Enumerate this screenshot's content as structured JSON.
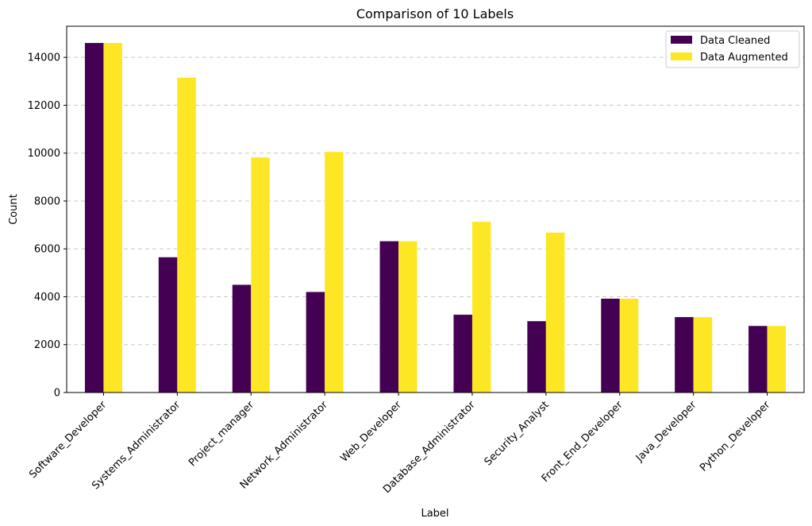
{
  "chart_data": {
    "type": "bar",
    "title": "Comparison of 10 Labels",
    "xlabel": "Label",
    "ylabel": "Count",
    "ylim": [
      0,
      15300
    ],
    "yticks": [
      0,
      2000,
      4000,
      6000,
      8000,
      10000,
      12000,
      14000
    ],
    "grid": "y-dashed",
    "legend_position": "top-right",
    "categories": [
      "Software_Developer",
      "Systems_Administrator",
      "Project_manager",
      "Network_Administrator",
      "Web_Developer",
      "Database_Administrator",
      "Security_Analyst",
      "Front_End_Developer",
      "Java_Developer",
      "Python_Developer"
    ],
    "series": [
      {
        "name": "Data Cleaned",
        "color": "#440154",
        "values": [
          14600,
          5650,
          4500,
          4200,
          6320,
          3250,
          2980,
          3920,
          3150,
          2780
        ]
      },
      {
        "name": "Data Augmented",
        "color": "#fde725",
        "values": [
          14600,
          13150,
          9820,
          10050,
          6320,
          7130,
          6680,
          3920,
          3150,
          2780
        ]
      }
    ]
  }
}
